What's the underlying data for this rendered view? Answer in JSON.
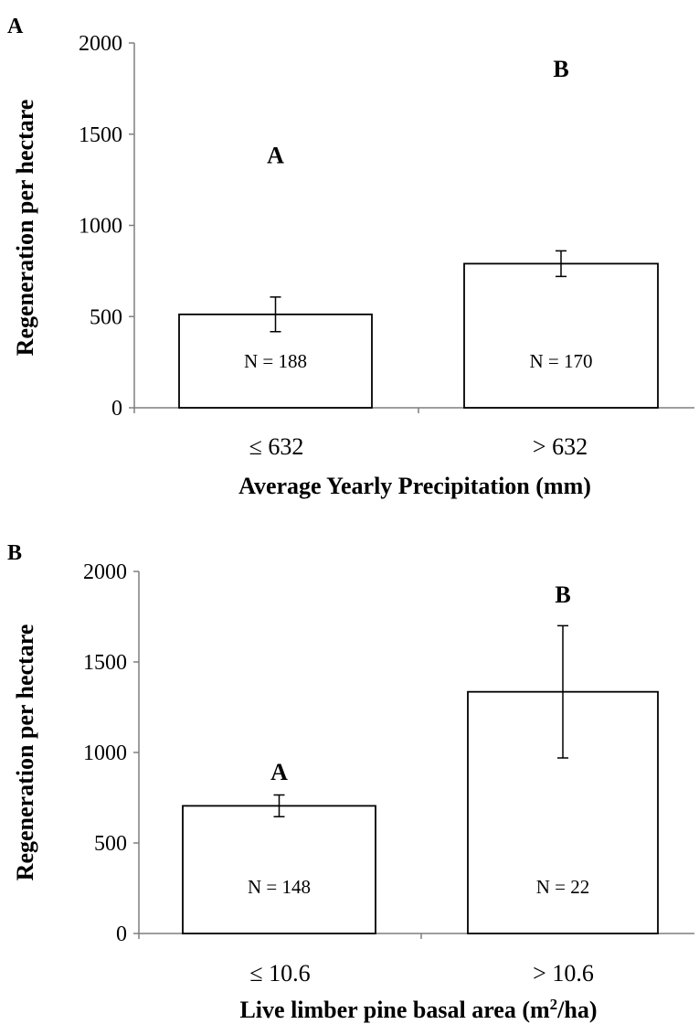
{
  "chart_data": [
    {
      "type": "bar",
      "panel_label": "A",
      "categories": [
        "≤ 632",
        "> 632"
      ],
      "values": [
        512,
        790
      ],
      "error": [
        95,
        70
      ],
      "n_labels": [
        "N = 188",
        "N = 170"
      ],
      "significance": [
        "A",
        "B"
      ],
      "significance_y": [
        1385,
        1860
      ],
      "xlabel": "Average Yearly Precipitation (mm)",
      "ylabel": "Regeneration per hectare",
      "ylim": [
        0,
        2000
      ],
      "yticks": [
        0,
        500,
        1000,
        1500,
        2000
      ],
      "grid": false
    },
    {
      "type": "bar",
      "panel_label": "B",
      "categories": [
        "≤ 10.6",
        "> 10.6"
      ],
      "values": [
        705,
        1335
      ],
      "error": [
        60,
        365
      ],
      "n_labels": [
        "N = 148",
        "N = 22"
      ],
      "significance": [
        "A",
        "B"
      ],
      "significance_y": [
        895,
        1875
      ],
      "xlabel_parts": [
        "Live limber pine basal area (m",
        "2",
        "/ha)"
      ],
      "ylabel": "Regeneration per hectare",
      "ylim": [
        0,
        2000
      ],
      "yticks": [
        0,
        500,
        1000,
        1500,
        2000
      ],
      "grid": false
    }
  ]
}
